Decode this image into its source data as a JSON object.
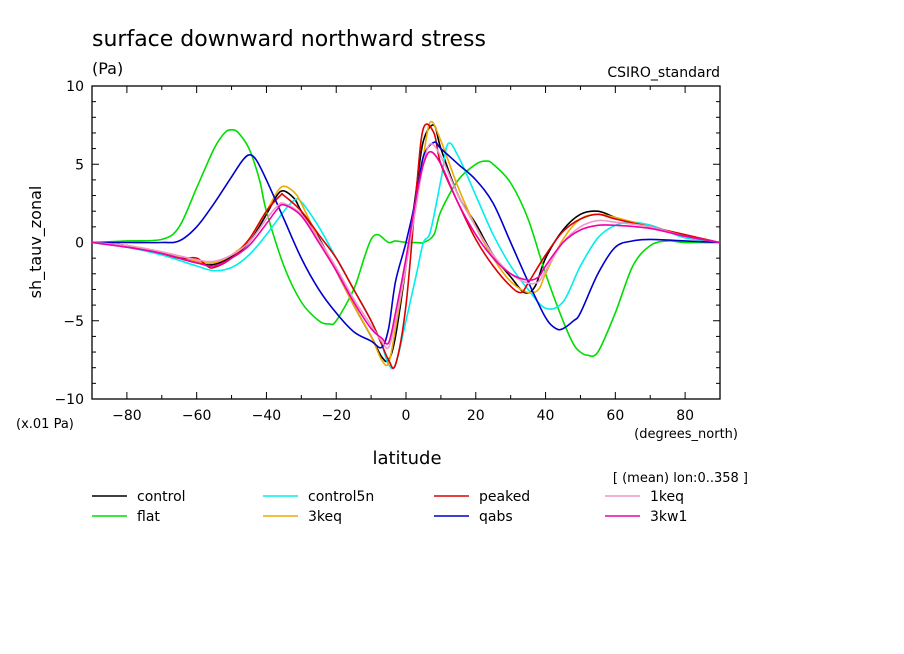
{
  "chart_data": {
    "type": "line",
    "title": "surface downward northward stress",
    "units": "(Pa)",
    "source_label": "CSIRO_standard",
    "ylabel": "sh_tauv_zonal",
    "xlabel": "latitude",
    "x_units": "(degrees_north)",
    "y_scale_note": "(x.01 Pa)",
    "mean_note": "[ (mean) lon:0..358 ]",
    "xlim": [
      -90,
      90
    ],
    "ylim": [
      -10,
      10
    ],
    "x_ticks": [
      -80,
      -60,
      -40,
      -20,
      0,
      20,
      40,
      60,
      80
    ],
    "y_ticks": [
      -10,
      -5,
      0,
      5,
      10
    ],
    "grid": false,
    "legend_position": "bottom",
    "series": [
      {
        "name": "control",
        "color": "#000000",
        "x": [
          -90,
          -80,
          -70,
          -60,
          -55,
          -50,
          -45,
          -40,
          -37,
          -35,
          -32,
          -30,
          -25,
          -20,
          -15,
          -10,
          -7,
          -5,
          -3,
          0,
          3,
          5,
          8,
          10,
          15,
          20,
          25,
          30,
          34,
          37,
          40,
          45,
          50,
          55,
          60,
          65,
          70,
          75,
          80,
          85,
          90
        ],
        "y": [
          0,
          -0.2,
          -0.7,
          -1.3,
          -1.4,
          -0.9,
          0,
          1.8,
          3.0,
          3.3,
          2.8,
          2.0,
          0.3,
          -1.8,
          -4.0,
          -6.0,
          -7.3,
          -7.5,
          -6.0,
          -1.5,
          3.5,
          6.5,
          7.5,
          6.0,
          3.0,
          1.2,
          -0.8,
          -2.2,
          -3.2,
          -2.8,
          -1.0,
          0.8,
          1.8,
          2.0,
          1.6,
          1.3,
          1.1,
          0.7,
          0.4,
          0.2,
          0
        ]
      },
      {
        "name": "flat",
        "color": "#00dd00",
        "x": [
          -90,
          -80,
          -70,
          -65,
          -60,
          -55,
          -52,
          -50,
          -48,
          -45,
          -42,
          -40,
          -35,
          -30,
          -25,
          -22,
          -20,
          -15,
          -12,
          -10,
          -8,
          -5,
          -3,
          0,
          3,
          5,
          8,
          10,
          15,
          20,
          23,
          25,
          30,
          35,
          40,
          45,
          48,
          50,
          52,
          55,
          60,
          65,
          70,
          75,
          80,
          90
        ],
        "y": [
          0,
          0.1,
          0.2,
          1.0,
          3.5,
          6.0,
          7.0,
          7.2,
          7.0,
          6.0,
          4.0,
          2.0,
          -1.5,
          -3.8,
          -5.0,
          -5.2,
          -5.0,
          -3.0,
          -1.0,
          0.2,
          0.5,
          0,
          0.1,
          0,
          0,
          0,
          0.5,
          2.0,
          4.0,
          5.0,
          5.2,
          5.0,
          3.8,
          1.5,
          -2.0,
          -5.0,
          -6.5,
          -7.0,
          -7.2,
          -7.0,
          -4.5,
          -1.5,
          -0.2,
          0.1,
          0,
          0
        ]
      },
      {
        "name": "control5n",
        "color": "#00eeee",
        "x": [
          -90,
          -80,
          -70,
          -60,
          -55,
          -50,
          -45,
          -40,
          -35,
          -32,
          -30,
          -25,
          -20,
          -15,
          -10,
          -7,
          -5,
          -3,
          0,
          3,
          5,
          7,
          10,
          12,
          15,
          20,
          25,
          30,
          35,
          40,
          45,
          50,
          55,
          60,
          65,
          70,
          75,
          80,
          90
        ],
        "y": [
          0,
          -0.3,
          -0.8,
          -1.5,
          -1.8,
          -1.6,
          -0.8,
          0.5,
          2.0,
          2.7,
          2.6,
          1.0,
          -1.0,
          -3.0,
          -5.0,
          -6.5,
          -7.8,
          -7.8,
          -5.0,
          -2.0,
          0.0,
          0.7,
          4.0,
          6.3,
          5.5,
          3.0,
          0.5,
          -1.5,
          -3.0,
          -4.2,
          -3.8,
          -1.5,
          0.3,
          1.1,
          1.3,
          1.1,
          0.7,
          0.3,
          0
        ]
      },
      {
        "name": "3keq",
        "color": "#eeaa00",
        "x": [
          -90,
          -80,
          -70,
          -60,
          -55,
          -50,
          -45,
          -40,
          -37,
          -35,
          -32,
          -30,
          -25,
          -20,
          -15,
          -10,
          -7,
          -5,
          -3,
          0,
          3,
          5,
          7,
          10,
          15,
          20,
          25,
          30,
          35,
          38,
          40,
          45,
          50,
          55,
          60,
          65,
          70,
          80,
          90
        ],
        "y": [
          0,
          -0.2,
          -0.6,
          -1.2,
          -1.3,
          -0.8,
          0.2,
          2.0,
          3.2,
          3.6,
          3.2,
          2.5,
          0.2,
          -1.8,
          -4.0,
          -6.0,
          -7.5,
          -7.7,
          -5.5,
          -1.5,
          2.5,
          5.5,
          7.7,
          6.5,
          3.5,
          1.0,
          -1.0,
          -2.5,
          -3.2,
          -3.0,
          -2.0,
          0.2,
          1.5,
          1.8,
          1.6,
          1.3,
          1.0,
          0.4,
          0
        ]
      },
      {
        "name": "peaked",
        "color": "#dd0000",
        "x": [
          -90,
          -80,
          -70,
          -65,
          -60,
          -57,
          -55,
          -50,
          -45,
          -40,
          -36,
          -35,
          -30,
          -25,
          -20,
          -15,
          -10,
          -7,
          -5,
          -3,
          0,
          3,
          5,
          8,
          10,
          15,
          20,
          25,
          30,
          33,
          35,
          40,
          45,
          50,
          55,
          60,
          70,
          80,
          90
        ],
        "y": [
          0,
          -0.2,
          -0.7,
          -1.0,
          -1.0,
          -1.5,
          -1.6,
          -1.0,
          0.2,
          2.0,
          3.0,
          3.0,
          2.0,
          0.5,
          -1.0,
          -3.0,
          -5.0,
          -6.5,
          -7.5,
          -7.8,
          -4.0,
          3.5,
          7.3,
          7.0,
          5.0,
          2.5,
          0.2,
          -1.5,
          -2.8,
          -3.2,
          -2.6,
          -0.8,
          0.7,
          1.5,
          1.8,
          1.5,
          1.0,
          0.5,
          0
        ]
      },
      {
        "name": "qabs",
        "color": "#0000cc",
        "x": [
          -90,
          -80,
          -70,
          -65,
          -60,
          -55,
          -50,
          -47,
          -45,
          -43,
          -40,
          -35,
          -30,
          -25,
          -20,
          -15,
          -10,
          -7,
          -5,
          -3,
          0,
          3,
          5,
          8,
          10,
          15,
          20,
          25,
          30,
          35,
          40,
          43,
          45,
          48,
          50,
          55,
          60,
          65,
          70,
          80,
          90
        ],
        "y": [
          0,
          0,
          0,
          0.1,
          1.0,
          2.5,
          4.2,
          5.2,
          5.6,
          5.3,
          4.0,
          1.5,
          -1.0,
          -3.0,
          -4.5,
          -5.7,
          -6.3,
          -6.7,
          -5.5,
          -2.5,
          0,
          3.0,
          5.5,
          6.4,
          6.0,
          5.0,
          4.0,
          2.5,
          0.0,
          -2.5,
          -4.8,
          -5.5,
          -5.5,
          -5.0,
          -4.5,
          -2.0,
          -0.3,
          0.1,
          0.2,
          0.1,
          0
        ]
      },
      {
        "name": "1keq",
        "color": "#ee99cc",
        "x": [
          -90,
          -80,
          -70,
          -60,
          -55,
          -50,
          -45,
          -40,
          -37,
          -35,
          -30,
          -25,
          -20,
          -15,
          -10,
          -7,
          -5,
          -3,
          0,
          3,
          5,
          7,
          10,
          15,
          20,
          25,
          30,
          35,
          38,
          40,
          45,
          50,
          55,
          60,
          70,
          80,
          90
        ],
        "y": [
          0,
          -0.2,
          -0.6,
          -1.1,
          -1.2,
          -0.8,
          0,
          1.5,
          2.3,
          2.5,
          1.8,
          0.2,
          -1.6,
          -3.6,
          -5.3,
          -6.3,
          -6.7,
          -5.0,
          -1.5,
          2.5,
          5.0,
          6.3,
          5.5,
          3.0,
          1.0,
          -0.8,
          -2.0,
          -2.6,
          -2.5,
          -1.8,
          0,
          1.0,
          1.4,
          1.3,
          1.0,
          0.4,
          0
        ]
      },
      {
        "name": "3kw1",
        "color": "#ee00aa",
        "x": [
          -90,
          -80,
          -70,
          -60,
          -55,
          -50,
          -45,
          -40,
          -37,
          -35,
          -30,
          -25,
          -20,
          -15,
          -10,
          -7,
          -5,
          -3,
          0,
          3,
          5,
          7,
          10,
          15,
          20,
          25,
          30,
          35,
          38,
          40,
          45,
          50,
          55,
          60,
          70,
          80,
          90
        ],
        "y": [
          0,
          -0.3,
          -0.7,
          -1.3,
          -1.5,
          -1.0,
          -0.2,
          1.2,
          2.1,
          2.4,
          1.7,
          0,
          -1.8,
          -3.8,
          -5.5,
          -6.1,
          -6.4,
          -4.5,
          -1.0,
          3.0,
          5.0,
          5.8,
          5.0,
          2.5,
          0.5,
          -1.0,
          -2.0,
          -2.4,
          -2.2,
          -1.5,
          0,
          0.8,
          1.1,
          1.1,
          0.9,
          0.4,
          0
        ]
      }
    ]
  }
}
